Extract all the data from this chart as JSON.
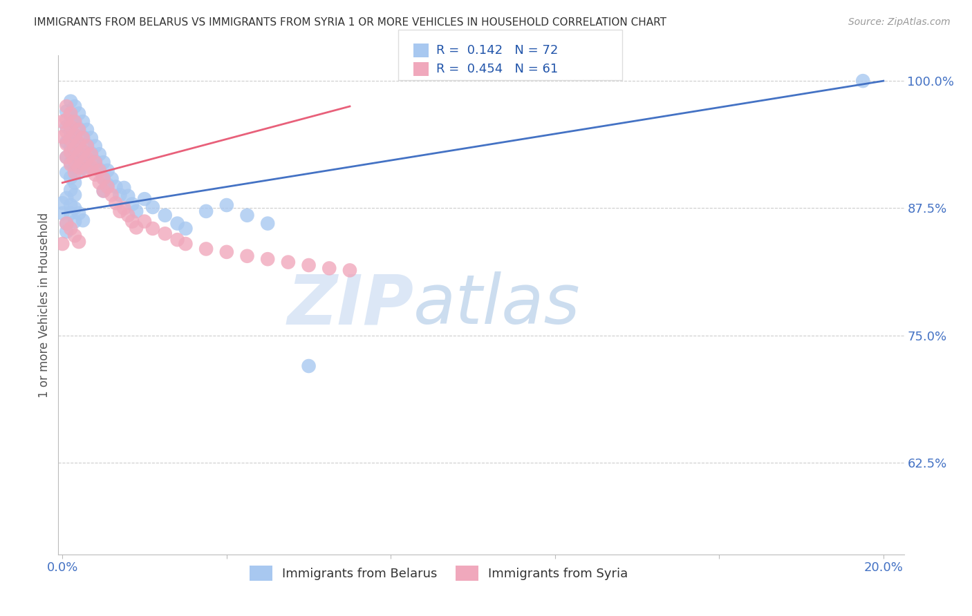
{
  "title": "IMMIGRANTS FROM BELARUS VS IMMIGRANTS FROM SYRIA 1 OR MORE VEHICLES IN HOUSEHOLD CORRELATION CHART",
  "source": "Source: ZipAtlas.com",
  "ylabel": "1 or more Vehicles in Household",
  "yticks": [
    0.625,
    0.75,
    0.875,
    1.0
  ],
  "ytick_labels": [
    "62.5%",
    "75.0%",
    "87.5%",
    "100.0%"
  ],
  "xlim": [
    -0.001,
    0.205
  ],
  "ylim": [
    0.535,
    1.025
  ],
  "legend_belarus_R": "0.142",
  "legend_belarus_N": "72",
  "legend_syria_R": "0.454",
  "legend_syria_N": "61",
  "color_belarus": "#A8C8F0",
  "color_syria": "#F0A8BC",
  "color_belarus_line": "#4472C4",
  "color_syria_line": "#E8607A",
  "watermark_zip": "ZIP",
  "watermark_atlas": "atlas",
  "belarus_scatter_x": [
    0.0,
    0.001,
    0.001,
    0.001,
    0.001,
    0.001,
    0.002,
    0.002,
    0.002,
    0.002,
    0.002,
    0.002,
    0.002,
    0.003,
    0.003,
    0.003,
    0.003,
    0.003,
    0.003,
    0.003,
    0.004,
    0.004,
    0.004,
    0.004,
    0.004,
    0.005,
    0.005,
    0.005,
    0.005,
    0.006,
    0.006,
    0.006,
    0.007,
    0.007,
    0.007,
    0.008,
    0.008,
    0.009,
    0.009,
    0.01,
    0.01,
    0.01,
    0.011,
    0.011,
    0.012,
    0.013,
    0.014,
    0.015,
    0.016,
    0.017,
    0.018,
    0.02,
    0.022,
    0.025,
    0.028,
    0.03,
    0.035,
    0.04,
    0.045,
    0.05,
    0.0,
    0.001,
    0.001,
    0.002,
    0.003,
    0.003,
    0.001,
    0.002,
    0.004,
    0.005,
    0.06,
    0.195
  ],
  "belarus_scatter_y": [
    0.88,
    0.97,
    0.955,
    0.94,
    0.925,
    0.91,
    0.98,
    0.965,
    0.95,
    0.935,
    0.92,
    0.905,
    0.893,
    0.975,
    0.96,
    0.945,
    0.93,
    0.915,
    0.9,
    0.888,
    0.968,
    0.953,
    0.938,
    0.923,
    0.91,
    0.96,
    0.945,
    0.93,
    0.915,
    0.952,
    0.937,
    0.922,
    0.944,
    0.929,
    0.914,
    0.936,
    0.921,
    0.928,
    0.913,
    0.92,
    0.905,
    0.892,
    0.912,
    0.898,
    0.904,
    0.896,
    0.888,
    0.895,
    0.887,
    0.879,
    0.872,
    0.884,
    0.876,
    0.868,
    0.86,
    0.855,
    0.872,
    0.878,
    0.868,
    0.86,
    0.87,
    0.86,
    0.852,
    0.87,
    0.862,
    0.875,
    0.885,
    0.878,
    0.87,
    0.863,
    0.72,
    1.0
  ],
  "syria_scatter_x": [
    0.0,
    0.0,
    0.001,
    0.001,
    0.001,
    0.001,
    0.001,
    0.002,
    0.002,
    0.002,
    0.002,
    0.002,
    0.003,
    0.003,
    0.003,
    0.003,
    0.003,
    0.004,
    0.004,
    0.004,
    0.004,
    0.005,
    0.005,
    0.005,
    0.006,
    0.006,
    0.006,
    0.007,
    0.007,
    0.008,
    0.008,
    0.009,
    0.009,
    0.01,
    0.01,
    0.011,
    0.012,
    0.013,
    0.014,
    0.015,
    0.016,
    0.017,
    0.018,
    0.02,
    0.022,
    0.025,
    0.028,
    0.03,
    0.035,
    0.04,
    0.045,
    0.05,
    0.055,
    0.06,
    0.065,
    0.07,
    0.0,
    0.001,
    0.002,
    0.003,
    0.004
  ],
  "syria_scatter_y": [
    0.96,
    0.945,
    0.975,
    0.962,
    0.95,
    0.938,
    0.925,
    0.968,
    0.955,
    0.942,
    0.93,
    0.918,
    0.96,
    0.947,
    0.934,
    0.921,
    0.91,
    0.952,
    0.939,
    0.927,
    0.915,
    0.944,
    0.931,
    0.919,
    0.936,
    0.924,
    0.912,
    0.928,
    0.916,
    0.92,
    0.908,
    0.912,
    0.9,
    0.904,
    0.892,
    0.896,
    0.888,
    0.88,
    0.872,
    0.875,
    0.868,
    0.862,
    0.856,
    0.862,
    0.855,
    0.85,
    0.844,
    0.84,
    0.835,
    0.832,
    0.828,
    0.825,
    0.822,
    0.819,
    0.816,
    0.814,
    0.84,
    0.86,
    0.855,
    0.848,
    0.842
  ],
  "blue_line_x": [
    0.0,
    0.2
  ],
  "blue_line_y": [
    0.87,
    1.0
  ],
  "pink_line_x": [
    0.0,
    0.07
  ],
  "pink_line_y": [
    0.9,
    0.975
  ]
}
